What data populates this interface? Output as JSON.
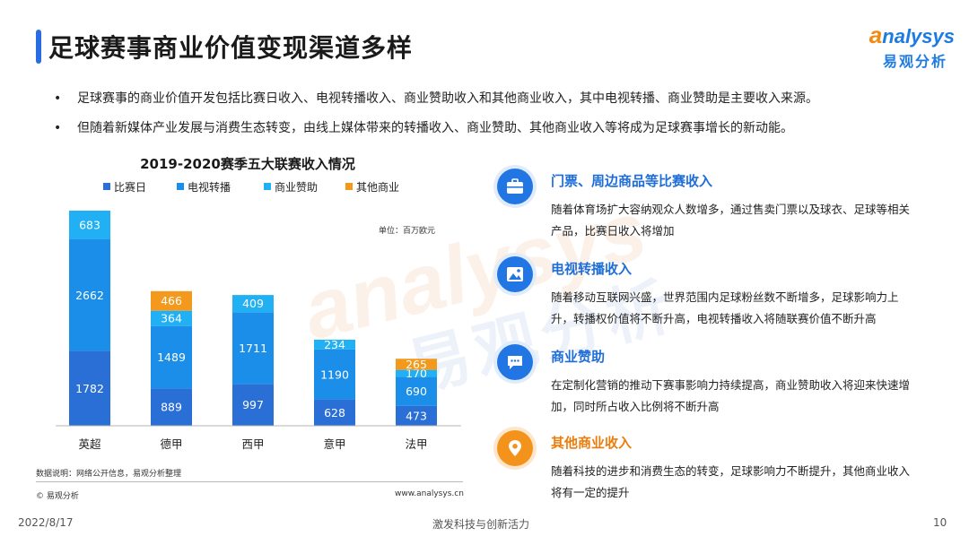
{
  "header": {
    "title": "足球赛事商业价值变现渠道多样"
  },
  "logo": {
    "en_first": "a",
    "en_rest": "nalysys",
    "cn": "易观分析"
  },
  "watermark": {
    "en": "analysys",
    "cn": "易观分析"
  },
  "bullets": [
    "足球赛事的商业价值开发包括比赛日收入、电视转播收入、商业赞助收入和其他商业收入，其中电视转播、商业赞助是主要收入来源。",
    "但随着新媒体产业发展与消费生态转变，由线上媒体带来的转播收入、商业赞助、其他商业收入等将成为足球赛事增长的新动能。"
  ],
  "bullet_symbol": "•",
  "chart_data": {
    "type": "bar",
    "stacked": true,
    "title": "2019-2020赛季五大联赛收入情况",
    "unit_label": "单位：百万欧元",
    "categories": [
      "英超",
      "德甲",
      "西甲",
      "意甲",
      "法甲"
    ],
    "series": [
      {
        "name": "比赛日",
        "values": [
          1782,
          889,
          997,
          628,
          473
        ],
        "color": "#2a6fd6"
      },
      {
        "name": "电视转播",
        "values": [
          2662,
          1489,
          1711,
          1190,
          690
        ],
        "color": "#1a8ee8"
      },
      {
        "name": "商业赞助",
        "values": [
          683,
          364,
          409,
          234,
          170
        ],
        "color": "#22b0f5"
      },
      {
        "name": "其他商业",
        "values": [
          null,
          466,
          null,
          null,
          265
        ],
        "color": "#f39a1e"
      }
    ],
    "ylim": [
      0,
      5127
    ],
    "legend_position": "top",
    "grid": false
  },
  "notes": {
    "source": "数据说明：网络公开信息，易观分析整理",
    "copyright": "© 易观分析",
    "website": "www.analysys.cn"
  },
  "items": [
    {
      "icon": "briefcase-icon",
      "title": "门票、周边商品等比赛收入",
      "desc": "随着体育场扩大容纳观众人数增多，通过售卖门票以及球衣、足球等相关产品，比赛日收入将增加",
      "color": "#2276e3"
    },
    {
      "icon": "picture-icon",
      "title": "电视转播收入",
      "desc": "随着移动互联网兴盛，世界范围内足球粉丝数不断增多，足球影响力上升，转播权价值将不断升高，电视转播收入将随联赛价值不断升高",
      "color": "#2276e3"
    },
    {
      "icon": "chat-bubble-icon",
      "title": "商业赞助",
      "desc": "在定制化营销的推动下赛事影响力持续提高，商业赞助收入将迎来快速增加，同时所占收入比例将不断升高",
      "color": "#2276e3"
    },
    {
      "icon": "location-pin-icon",
      "title": "其他商业收入",
      "desc": "随着科技的进步和消费生态的转变，足球影响力不断提升，其他商业收入将有一定的提升",
      "color": "#f4931c"
    }
  ],
  "footer": {
    "date": "2022/8/17",
    "slogan": "激发科技与创新活力",
    "page": "10"
  }
}
